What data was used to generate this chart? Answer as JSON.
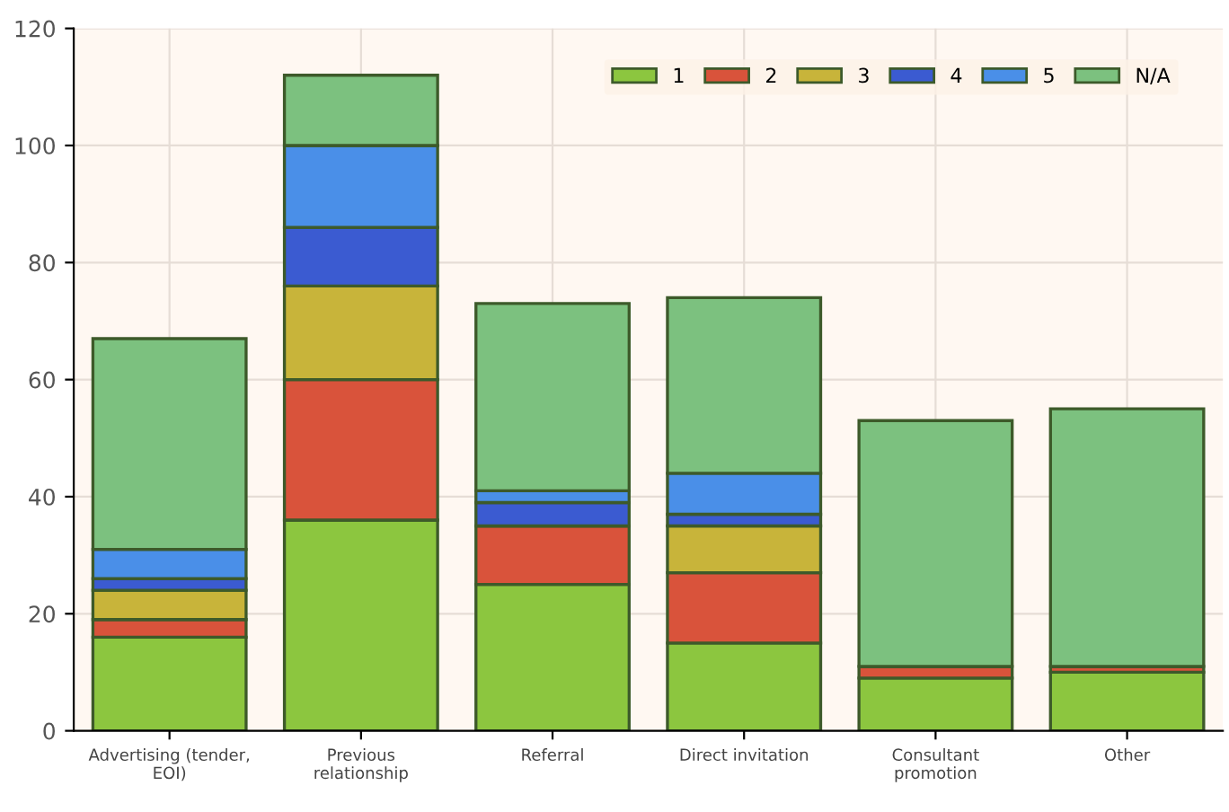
{
  "chart_data": {
    "type": "bar",
    "stacked": true,
    "categories": [
      "Advertising (tender,\nEOI)",
      "Previous\nrelationship",
      "Referral",
      "Direct invitation",
      "Consultant\npromotion",
      "Other"
    ],
    "series": [
      {
        "name": "1",
        "color": "#8cc63f",
        "values": [
          16,
          36,
          25,
          15,
          9,
          10
        ]
      },
      {
        "name": "2",
        "color": "#d9533b",
        "values": [
          3,
          24,
          10,
          12,
          2,
          1
        ]
      },
      {
        "name": "3",
        "color": "#c8b43a",
        "values": [
          5,
          16,
          0,
          8,
          0,
          0
        ]
      },
      {
        "name": "4",
        "color": "#3b5bd1",
        "values": [
          2,
          10,
          4,
          2,
          0,
          0
        ]
      },
      {
        "name": "5",
        "color": "#4a8fe8",
        "values": [
          5,
          14,
          2,
          7,
          0,
          0
        ]
      },
      {
        "name": "N/A",
        "color": "#7cc17f",
        "values": [
          36,
          12,
          32,
          30,
          42,
          44
        ]
      }
    ],
    "ylim": [
      0,
      120
    ],
    "yticks": [
      0,
      20,
      40,
      60,
      80,
      100,
      120
    ],
    "grid": true,
    "legend": "top right"
  }
}
